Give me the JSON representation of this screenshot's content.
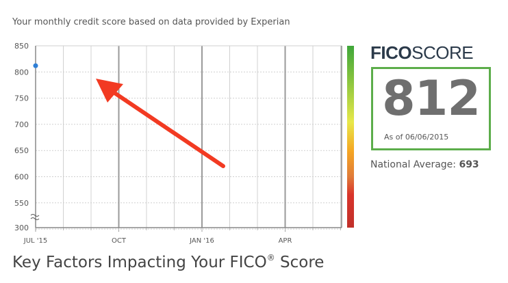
{
  "subtitle": "Your monthly credit score based on data provided by Experian",
  "fico": {
    "logo_bold": "FICO",
    "logo_light": "SCORE",
    "score": "812",
    "as_of": "As of 06/06/2015",
    "national_average_label": "National Average:",
    "national_average_value": "693"
  },
  "section_title": {
    "text_before": "Key Factors Impacting Your FICO",
    "superscript": "®",
    "text_after": " Score"
  },
  "colors": {
    "score_box_border": "#5cad4a",
    "data_point": "#2f7fd6",
    "arrow": "#f23a22",
    "color_bar": [
      "#3fa63a",
      "#8cc63f",
      "#e8e84a",
      "#f5a623",
      "#e07b39",
      "#d9342b",
      "#c0302a"
    ]
  },
  "icons": {
    "axis_break": "axis-break-icon",
    "annotation_arrow": "red-arrow-annotation-icon"
  },
  "chart_data": {
    "type": "line",
    "x_ticks": [
      "JUL '15",
      "OCT",
      "JAN '16",
      "APR"
    ],
    "y_ticks": [
      "850",
      "800",
      "750",
      "700",
      "650",
      "600",
      "550",
      "300"
    ],
    "y_values": [
      850,
      800,
      750,
      700,
      650,
      600,
      550,
      300
    ],
    "ylim": [
      300,
      850
    ],
    "y_axis_break": true,
    "grid": true,
    "series": [
      {
        "x": [
          "2015-07"
        ],
        "values": [
          812
        ]
      }
    ]
  }
}
